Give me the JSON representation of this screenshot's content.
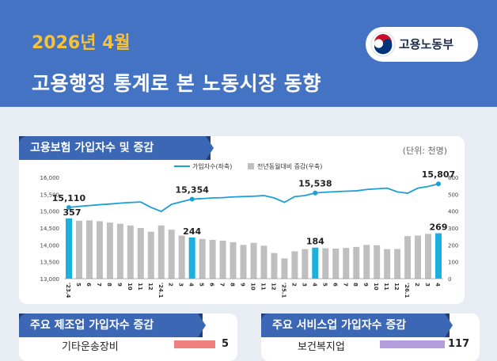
{
  "header": {
    "date": "2026년 4월",
    "title": "고용행정 통계로 본 노동시장 동향",
    "ministry": "고용노동부"
  },
  "main_card": {
    "label": "고용보험 가입자수 및 증감",
    "unit": "(단위: 천명)",
    "legend_line": "가입자수(좌축)",
    "legend_bar": "전년동월대비 증감(우축)"
  },
  "chart_data": {
    "type": "bar+line",
    "categories": [
      "'23.4",
      "5",
      "6",
      "7",
      "8",
      "9",
      "10",
      "11",
      "12",
      "'24.1",
      "2",
      "3",
      "4",
      "5",
      "6",
      "7",
      "8",
      "9",
      "10",
      "11",
      "12",
      "'25.1",
      "2",
      "3",
      "4",
      "5",
      "6",
      "7",
      "8",
      "9",
      "10",
      "11",
      "12",
      "'26.1",
      "2",
      "3",
      "4"
    ],
    "line_series": {
      "name": "가입자수(좌축)",
      "values": [
        15110,
        15140,
        15165,
        15190,
        15210,
        15235,
        15255,
        15270,
        15110,
        14990,
        15200,
        15280,
        15354,
        15370,
        15390,
        15400,
        15420,
        15430,
        15440,
        15460,
        15390,
        15260,
        15430,
        15460,
        15538,
        15560,
        15575,
        15590,
        15600,
        15640,
        15660,
        15680,
        15570,
        15530,
        15680,
        15730,
        15807
      ]
    },
    "bar_series": {
      "name": "전년동월대비 증감(우축)",
      "values": [
        357,
        343,
        345,
        340,
        332,
        325,
        315,
        300,
        278,
        315,
        290,
        255,
        244,
        235,
        230,
        225,
        216,
        200,
        212,
        195,
        152,
        120,
        162,
        175,
        184,
        180,
        178,
        182,
        188,
        200,
        198,
        175,
        176,
        252,
        255,
        265,
        269
      ]
    },
    "highlight_indices": [
      0,
      12,
      24,
      36
    ],
    "y_left": {
      "min": 13000,
      "max": 16000,
      "ticks": [
        "13,000",
        "13,500",
        "14,000",
        "14,500",
        "15,000",
        "15,500",
        "16,000"
      ]
    },
    "y_right": {
      "min": 0,
      "max": 600,
      "ticks": [
        "0",
        "100",
        "200",
        "300",
        "400",
        "500",
        "600"
      ]
    },
    "line_labels": [
      "15,110",
      "15,354",
      "15,538",
      "15,807"
    ],
    "bar_labels": [
      "357",
      "244",
      "184",
      "269"
    ],
    "colors": {
      "bar": "#bfbfbf",
      "bar_highlight": "#1ab0e0",
      "line": "#1a9fd6"
    }
  },
  "bottom_left": {
    "label": "주요 제조업 가입자수 증감",
    "item": "기타운송장비",
    "value": "5",
    "color": "#f08080"
  },
  "bottom_right": {
    "label": "주요 서비스업 가입자수 증감",
    "item": "보건복지업",
    "value": "117",
    "color": "#b39ddb"
  }
}
